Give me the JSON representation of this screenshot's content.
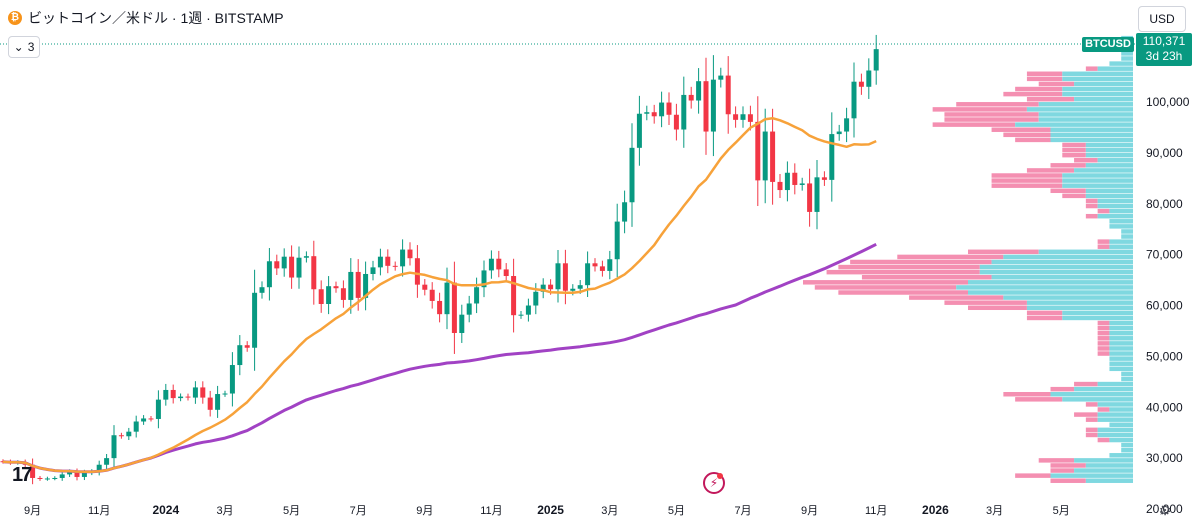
{
  "header": {
    "title": "ビットコイン／米ドル · 1週 · BITSTAMP",
    "coin_symbol": "₿",
    "indicator_count": "3",
    "currency_button": "USD"
  },
  "price_tag": {
    "symbol": "BTCUSD",
    "price": "110,371",
    "countdown": "3d 23h",
    "color": "#089981"
  },
  "colors": {
    "up": "#089981",
    "down": "#f23645",
    "ma_short": "#f7a23a",
    "ma_long": "#a142c4",
    "vp_up": "#7fd8e0",
    "vp_down": "#f48fb1"
  },
  "icons": [
    "bitcoin-icon",
    "chevron-down-icon",
    "tradingview-logo-icon",
    "gear-icon",
    "lightning-icon"
  ],
  "chart_data": {
    "type": "candlestick",
    "symbol": "BTCUSD",
    "interval": "1週",
    "exchange": "BITSTAMP",
    "y_range": [
      20000,
      112000
    ],
    "y_ticks": [
      {
        "value": 20000,
        "label": "20,000"
      },
      {
        "value": 30000,
        "label": "30,000"
      },
      {
        "value": 40000,
        "label": "40,000"
      },
      {
        "value": 50000,
        "label": "50,000"
      },
      {
        "value": 60000,
        "label": "60,000"
      },
      {
        "value": 70000,
        "label": "70,000"
      },
      {
        "value": 80000,
        "label": "80,000"
      },
      {
        "value": 90000,
        "label": "90,000"
      },
      {
        "value": 100000,
        "label": "100,000"
      }
    ],
    "x_ticks": [
      {
        "label": "9月",
        "week": 4,
        "bold": false
      },
      {
        "label": "11月",
        "week": 13,
        "bold": false
      },
      {
        "label": "2024",
        "week": 22,
        "bold": true
      },
      {
        "label": "3月",
        "week": 30,
        "bold": false
      },
      {
        "label": "5月",
        "week": 39,
        "bold": false
      },
      {
        "label": "7月",
        "week": 48,
        "bold": false
      },
      {
        "label": "9月",
        "week": 57,
        "bold": false
      },
      {
        "label": "11月",
        "week": 66,
        "bold": false
      },
      {
        "label": "2025",
        "week": 74,
        "bold": true
      },
      {
        "label": "3月",
        "week": 82,
        "bold": false
      },
      {
        "label": "5月",
        "week": 91,
        "bold": false
      },
      {
        "label": "7月",
        "week": 100,
        "bold": false
      },
      {
        "label": "9月",
        "week": 109,
        "bold": false
      },
      {
        "label": "11月",
        "week": 118,
        "bold": false
      },
      {
        "label": "2026",
        "week": 126,
        "bold": true
      },
      {
        "label": "3月",
        "week": 134,
        "bold": false
      },
      {
        "label": "5月",
        "week": 143,
        "bold": false
      }
    ],
    "last_price": 110371,
    "closes": [
      29300,
      29100,
      29200,
      28700,
      26100,
      25900,
      26000,
      26100,
      26800,
      27300,
      26300,
      27100,
      27400,
      28700,
      30000,
      34500,
      34300,
      35200,
      37200,
      37800,
      37700,
      41500,
      43400,
      41800,
      42100,
      41900,
      43900,
      41900,
      39500,
      42600,
      42700,
      48300,
      52200,
      51700,
      62500,
      63600,
      68700,
      67300,
      69600,
      65500,
      69400,
      69700,
      63200,
      60300,
      63800,
      63400,
      61100,
      66600,
      61500,
      66200,
      67500,
      69600,
      67800,
      67700,
      71000,
      69300,
      64100,
      63100,
      60900,
      58300,
      64500,
      54600,
      58200,
      60400,
      63600,
      66900,
      69200,
      67100,
      65800,
      58100,
      58200,
      60000,
      62700,
      64100,
      63200,
      68300,
      62900,
      63300,
      64000,
      68300,
      67700,
      66800,
      69100,
      76500,
      80300,
      91000,
      97700,
      98000,
      97200,
      99900,
      97500,
      94600,
      101400,
      100300,
      104100,
      94200,
      104400,
      105200,
      97600,
      96500,
      97600,
      96100,
      84600,
      94200,
      84300,
      82700,
      86100,
      83700,
      84000,
      78400,
      85200,
      84700,
      93700,
      94200,
      96800,
      104000,
      103000,
      106200,
      110400
    ]
  }
}
